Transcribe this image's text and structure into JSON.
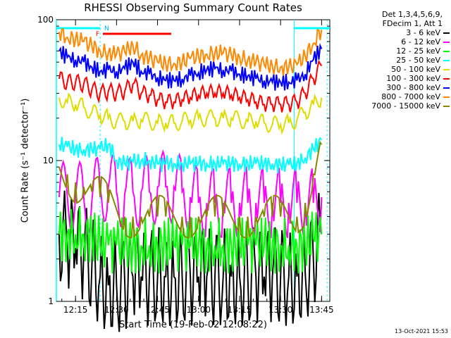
{
  "chart_data": {
    "type": "line",
    "title": "RHESSI Observing Summary Count Rates",
    "xlabel": "Start Time (19-Feb-02 12:08:22)",
    "ylabel": "Count Rate (s⁻¹ detector⁻¹)",
    "yscale": "log",
    "ylim": [
      1,
      100
    ],
    "xlim": [
      "12:08",
      "13:48"
    ],
    "x_ticks": [
      "12:15",
      "12:30",
      "12:45",
      "13:00",
      "13:15",
      "13:30",
      "13:45"
    ],
    "y_ticks": [
      "1",
      "10",
      "100"
    ],
    "legend_header": [
      "Det 1,3,4,5,6,9,",
      "FDecim 1, Att 1"
    ],
    "legend_placement": "right of plot",
    "timestamp": "13-Oct-2021 15:53",
    "flag_labels": [
      "N",
      "F"
    ],
    "x": [
      "12:09",
      "12:12",
      "12:15",
      "12:18",
      "12:21",
      "12:24",
      "12:27",
      "12:30",
      "12:33",
      "12:36",
      "12:39",
      "12:42",
      "12:45",
      "12:48",
      "12:51",
      "12:54",
      "12:57",
      "13:00",
      "13:03",
      "13:06",
      "13:09",
      "13:12",
      "13:15",
      "13:18",
      "13:21",
      "13:24",
      "13:27",
      "13:30",
      "13:33",
      "13:36",
      "13:39",
      "13:42",
      "13:45"
    ],
    "series": [
      {
        "name": "3 - 6 keV",
        "color": "#000000",
        "values": [
          3.0,
          2.6,
          2.4,
          2.2,
          1.8,
          1.5,
          1.3,
          1.3,
          1.4,
          1.5,
          1.5,
          1.5,
          1.5,
          1.5,
          1.5,
          1.5,
          1.5,
          1.5,
          1.5,
          1.5,
          1.5,
          1.5,
          1.5,
          1.5,
          1.5,
          1.5,
          1.5,
          1.5,
          1.5,
          1.5,
          1.6,
          2.0,
          3.0
        ]
      },
      {
        "name": "6 - 12 keV",
        "color": "#ff00ff",
        "values": [
          5.5,
          5.5,
          5.5,
          5.5,
          5.2,
          6.5,
          6.5,
          6.0,
          5.8,
          6.0,
          6.0,
          6.0,
          6.5,
          6.5,
          6.5,
          6.0,
          5.5,
          5.0,
          5.0,
          5.0,
          5.0,
          5.0,
          5.0,
          5.0,
          5.0,
          5.0,
          5.0,
          5.0,
          5.0,
          5.0,
          5.0,
          5.0,
          5.5
        ]
      },
      {
        "name": "12 - 25 keV",
        "color": "#00ff00",
        "values": [
          3.0,
          3.0,
          3.0,
          3.0,
          3.0,
          2.5,
          2.5,
          2.5,
          2.5,
          2.5,
          2.5,
          2.5,
          2.5,
          2.5,
          2.5,
          2.5,
          2.5,
          2.5,
          2.5,
          2.5,
          2.5,
          2.5,
          2.5,
          2.5,
          2.5,
          2.5,
          2.5,
          2.5,
          2.5,
          2.5,
          2.5,
          2.8,
          3.0
        ]
      },
      {
        "name": "25 - 50 keV",
        "color": "#00ffff",
        "values": [
          13,
          12.5,
          12,
          12,
          12,
          12,
          13,
          10,
          9.5,
          9.8,
          10,
          10,
          9.5,
          9.5,
          9.5,
          9.5,
          9.5,
          9.5,
          9.5,
          9.5,
          9.5,
          9.5,
          9.5,
          9.5,
          9.5,
          9.5,
          9.5,
          9.3,
          9.3,
          9.5,
          10.5,
          12,
          14
        ]
      },
      {
        "name": "50 - 100 keV",
        "color": "#dddd00",
        "values": [
          28,
          26,
          25,
          24,
          22,
          21,
          20,
          19,
          19,
          19,
          19.5,
          19,
          18.5,
          18.5,
          18.5,
          19,
          19.5,
          20,
          20,
          20,
          20,
          20,
          19.5,
          19,
          19,
          18.5,
          18,
          18,
          18.5,
          19.5,
          22,
          25,
          28
        ]
      },
      {
        "name": "100 - 300 keV",
        "color": "#ff0000",
        "values": [
          38,
          36,
          36,
          35,
          32,
          30,
          31,
          30,
          31,
          35,
          30,
          29,
          27,
          26,
          26,
          27,
          28,
          29,
          30,
          30,
          30,
          29,
          28,
          27,
          26,
          25,
          25,
          25,
          25,
          26,
          30,
          38,
          47
        ]
      },
      {
        "name": "300 - 800 keV",
        "color": "#0000ff",
        "values": [
          60,
          54,
          52,
          50,
          46,
          43,
          44,
          43,
          45,
          50,
          43,
          41,
          39,
          37,
          37,
          38,
          40,
          42,
          44,
          45,
          44,
          43,
          41,
          40,
          38,
          37,
          36,
          36,
          36,
          37,
          41,
          52,
          62
        ]
      },
      {
        "name": "800 - 7000 keV",
        "color": "#ff8800",
        "values": [
          82,
          75,
          73,
          70,
          65,
          60,
          58,
          57,
          59,
          66,
          56,
          53,
          50,
          49,
          49,
          50,
          53,
          55,
          57,
          58,
          58,
          56,
          54,
          52,
          50,
          48,
          47,
          46,
          46,
          48,
          55,
          68,
          85
        ]
      },
      {
        "name": "7000 - 15000 keV",
        "color": "#888800",
        "values": [
          9.0,
          8.0,
          7.0,
          6.5,
          6.0,
          5.5,
          5.0,
          4.5,
          4.0,
          4.0,
          4.0,
          4.0,
          4.0,
          4.0,
          4.0,
          4.0,
          4.0,
          4.0,
          4.0,
          4.0,
          4.0,
          4.0,
          4.0,
          4.0,
          4.0,
          4.0,
          4.0,
          4.0,
          4.0,
          4.0,
          5.0,
          8.0,
          13.0
        ]
      }
    ]
  }
}
